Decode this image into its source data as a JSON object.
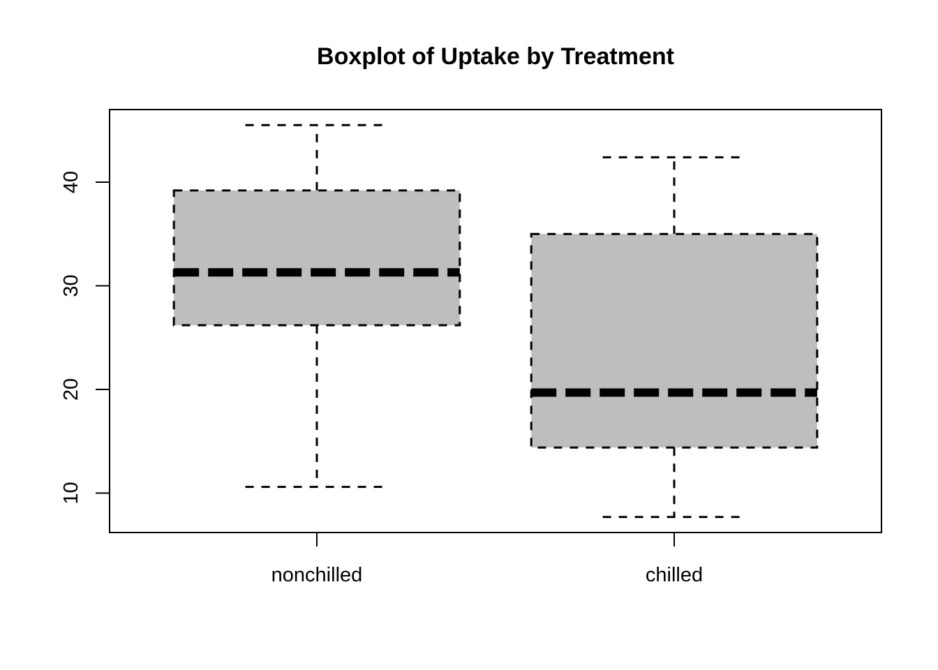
{
  "chart_data": {
    "type": "boxplot",
    "title": "Boxplot of Uptake by Treatment",
    "xlabel": "",
    "ylabel": "",
    "categories": [
      "nonchilled",
      "chilled"
    ],
    "boxes": [
      {
        "category": "nonchilled",
        "min": 10.6,
        "q1": 26.2,
        "median": 31.3,
        "q3": 39.2,
        "max": 45.5
      },
      {
        "category": "chilled",
        "min": 7.7,
        "q1": 14.4,
        "median": 19.7,
        "q3": 35.0,
        "max": 42.4
      }
    ],
    "yticks": [
      10,
      20,
      30,
      40
    ],
    "ylim": [
      6.2,
      47.0
    ],
    "box_color": "#bebebe",
    "line_color": "#000000",
    "grid": false,
    "legend": "none"
  }
}
